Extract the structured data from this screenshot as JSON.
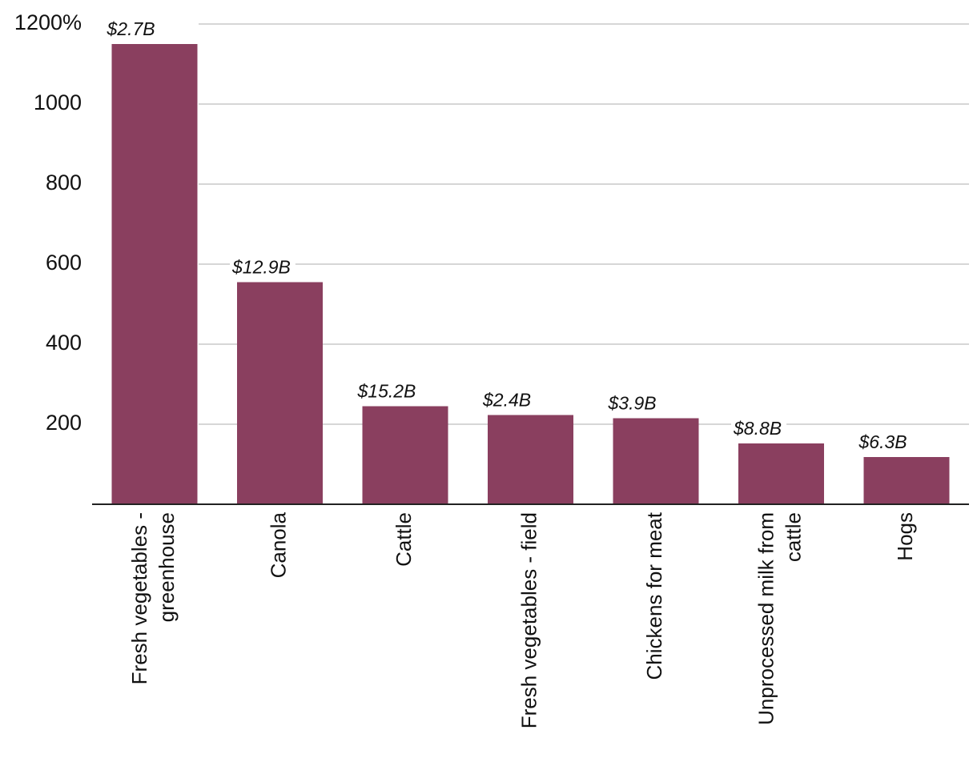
{
  "chart_data": {
    "type": "bar",
    "categories": [
      [
        "Fresh vegetables -",
        "greenhouse"
      ],
      [
        "Canola"
      ],
      [
        "Cattle"
      ],
      [
        "Fresh vegetables - field"
      ],
      [
        "Chickens for meat"
      ],
      [
        "Unprocessed milk from",
        "cattle"
      ],
      [
        "Hogs"
      ]
    ],
    "values": [
      1150,
      555,
      245,
      223,
      215,
      152,
      118
    ],
    "data_labels": [
      "$2.7B",
      "$12.9B",
      "$15.2B",
      "$2.4B",
      "$3.9B",
      "$8.8B",
      "$6.3B"
    ],
    "y_ticks": [
      {
        "value": 200,
        "label": "200"
      },
      {
        "value": 400,
        "label": "400"
      },
      {
        "value": 600,
        "label": "600"
      },
      {
        "value": 800,
        "label": "800"
      },
      {
        "value": 1000,
        "label": "1000"
      },
      {
        "value": 1200,
        "label": "1200%"
      }
    ],
    "ylim": [
      0,
      1200
    ],
    "grid": true,
    "bar_color": "#8a3f5f",
    "title": "",
    "xlabel": "",
    "ylabel": ""
  }
}
